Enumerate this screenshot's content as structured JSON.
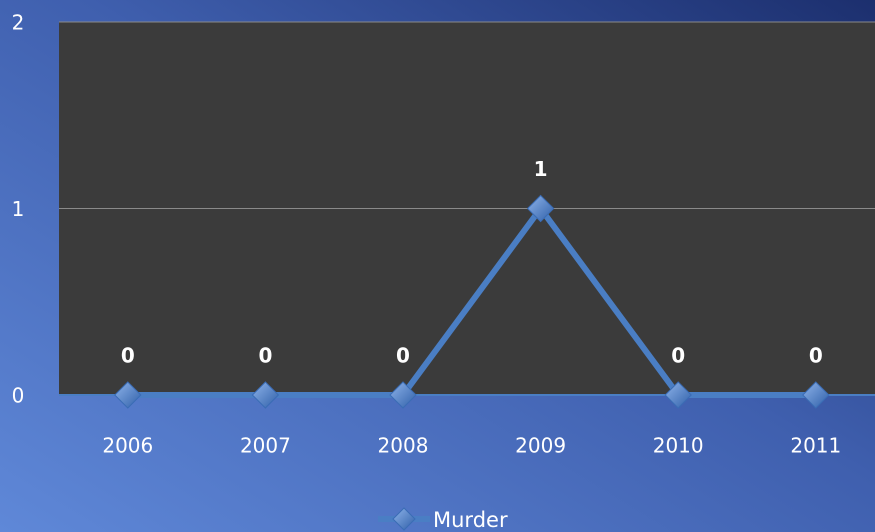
{
  "chart_data": {
    "type": "line",
    "categories": [
      "2006",
      "2007",
      "2008",
      "2009",
      "2010",
      "2011"
    ],
    "series": [
      {
        "name": "Murder",
        "color": "#4a7ec4",
        "values": [
          0,
          0,
          0,
          1,
          0,
          0
        ]
      }
    ],
    "ylim": [
      0,
      2
    ],
    "yticks": [
      0,
      1,
      2
    ],
    "grid": true,
    "legend": "bottom",
    "data_labels": true
  }
}
